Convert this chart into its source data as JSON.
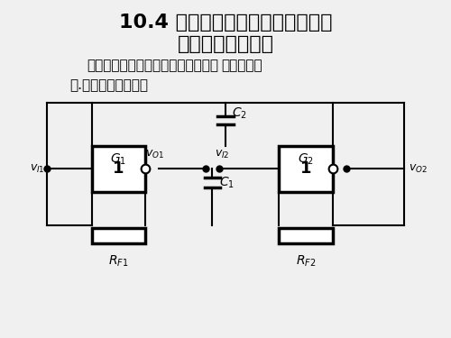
{
  "title_line1": "10.4 多谐振荡器（自激振荡，不需",
  "title_line2": "要外加触发信号）",
  "subtitle": "能产生矩形脉冲的自激振荡电路叫做",
  "subtitle_bold": "多谐振荡器",
  "section": "一.对称式多谐振荡器",
  "bg_color": "#f0f0f0",
  "text_color": "#000000",
  "title_fontsize": 16,
  "subtitle_fontsize": 11,
  "section_fontsize": 11
}
